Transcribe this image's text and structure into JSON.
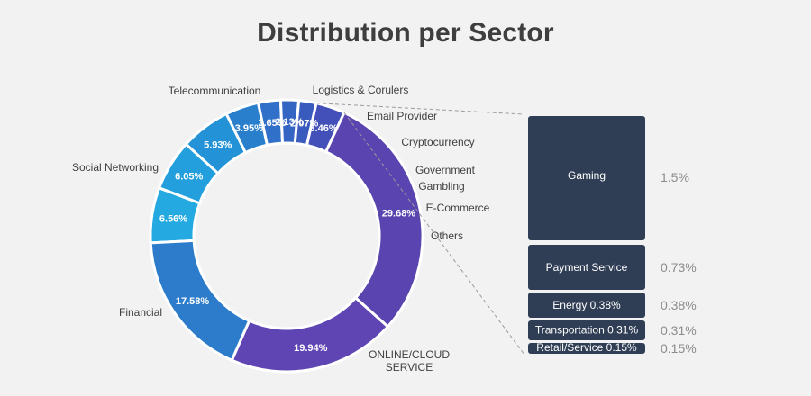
{
  "title": "Distribution per Sector",
  "chart_data": [
    {
      "type": "pie",
      "variant": "donut",
      "slices": [
        {
          "label": "Telecommunication",
          "value": 6.56,
          "value_label": "6.56%",
          "color": "#24a9e1"
        },
        {
          "label": "Logistics & Corulers",
          "value": 6.05,
          "value_label": "6.05%",
          "color": "#229fdc"
        },
        {
          "label": "Email Provider",
          "value": 5.93,
          "value_label": "5.93%",
          "color": "#2392d6"
        },
        {
          "label": "Cryptocurrency",
          "value": 3.95,
          "value_label": "3.95%",
          "color": "#2a7fcd"
        },
        {
          "label": "Government",
          "value": 2.65,
          "value_label": "2.65%",
          "color": "#3070c8"
        },
        {
          "label": "Gambling",
          "value": 2.13,
          "value_label": "2.13%",
          "color": "#3565c3"
        },
        {
          "label": "E-Commerce",
          "value": 2.07,
          "value_label": "2.07%",
          "color": "#3a5bbe"
        },
        {
          "label": "Others",
          "value": 3.46,
          "value_label": "3.46%",
          "color": "#4350b9"
        },
        {
          "label": "ONLINE/CLOUD SERVICE",
          "value": 29.68,
          "value_label": "29.68%",
          "color": "#5a44b0"
        },
        {
          "label": "Financial",
          "value": 19.94,
          "value_label": "19.94%",
          "color": "#5f45b3"
        },
        {
          "label": "Social Networking",
          "value": 17.58,
          "value_label": "17.58%",
          "color": "#2c7ccb"
        }
      ]
    },
    {
      "type": "bar",
      "variant": "stacked-breakdown",
      "breakdown_of": "Others",
      "items": [
        {
          "label": "Gaming",
          "value": 1.5,
          "value_label": "1.5%"
        },
        {
          "label": "Payment Service",
          "value": 0.73,
          "value_label": "0.73%"
        },
        {
          "label": "Energy 0.38%",
          "value": 0.38,
          "value_label": "0.38%"
        },
        {
          "label": "Transportation 0.31%",
          "value": 0.31,
          "value_label": "0.31%"
        },
        {
          "label": "Retail/Service 0.15%",
          "value": 0.15,
          "value_label": "0.15%"
        }
      ],
      "color": "#2f3e55"
    }
  ]
}
